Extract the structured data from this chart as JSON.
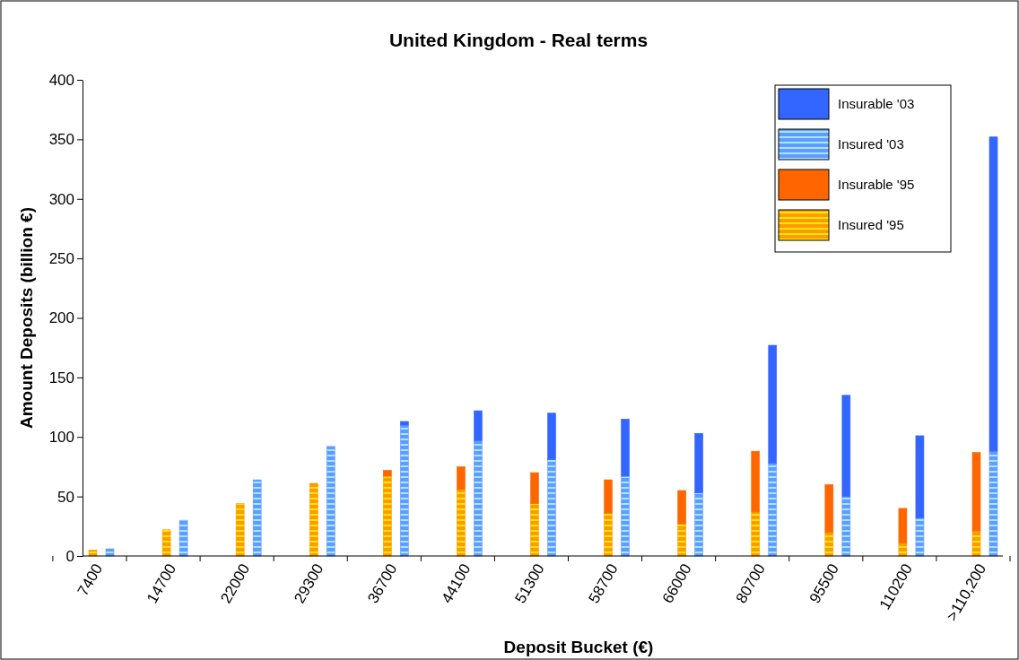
{
  "chart_data": {
    "type": "bar",
    "title": "United Kingdom - Real terms",
    "xlabel": "Deposit Bucket (€)",
    "ylabel": "Amount Deposits (billion €)",
    "categories": [
      "7400",
      null,
      "14700",
      null,
      "22000",
      null,
      "29300",
      null,
      "36700",
      null,
      "44100",
      null,
      "51300",
      null,
      "58700",
      null,
      "66000",
      null,
      "80700",
      null,
      "95500",
      null,
      "110200",
      null,
      ">110,200",
      null
    ],
    "stacked": true,
    "series": [
      {
        "name": "Insured '95",
        "color": "#ff9900",
        "values": [
          5,
          null,
          22,
          null,
          44,
          null,
          61,
          null,
          67,
          null,
          56,
          null,
          44,
          null,
          36,
          null,
          27,
          null,
          37,
          null,
          20,
          null,
          11,
          null,
          21,
          null
        ]
      },
      {
        "name": "Insurable '95",
        "color": "#ff6600",
        "values": [
          0,
          null,
          0,
          null,
          0,
          null,
          0,
          null,
          5,
          null,
          19,
          null,
          26,
          null,
          28,
          null,
          28,
          null,
          51,
          null,
          40,
          null,
          29,
          null,
          66,
          null
        ]
      },
      {
        "name": "Insured '03",
        "color": "#6699ff",
        "values": [
          null,
          6,
          null,
          30,
          null,
          64,
          null,
          92,
          null,
          110,
          null,
          97,
          null,
          81,
          null,
          67,
          null,
          53,
          null,
          78,
          null,
          50,
          null,
          32,
          null,
          88
        ]
      },
      {
        "name": "Insurable '03",
        "color": "#3366ff",
        "values": [
          null,
          0,
          null,
          0,
          null,
          0,
          null,
          0,
          null,
          3,
          null,
          25,
          null,
          39,
          null,
          48,
          null,
          50,
          null,
          99,
          null,
          85,
          null,
          69,
          null,
          264
        ]
      }
    ],
    "ylim": [
      0,
      400
    ],
    "yticks": [
      0,
      50,
      100,
      150,
      200,
      250,
      300,
      350,
      400
    ],
    "legend": "top right"
  }
}
